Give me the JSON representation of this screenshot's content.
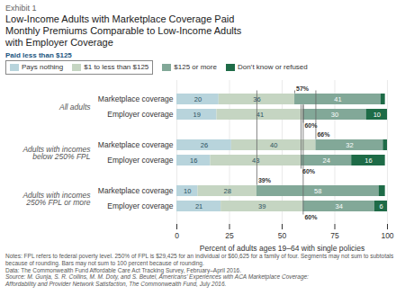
{
  "chart_data": {
    "type": "bar",
    "orientation": "horizontal",
    "stacked": true,
    "exhibit": "Exhibit 1",
    "title": "Low-Income Adults with Marketplace Coverage Paid\nMonthly Premiums Comparable to Low-Income Adults\nwith Employer Coverage",
    "categories": [
      "Marketplace coverage",
      "Employer coverage",
      "Marketplace coverage",
      "Employer coverage",
      "Marketplace coverage",
      "Employer coverage"
    ],
    "category_groups": [
      "All adults",
      "All adults",
      "Adults with incomes\nbelow 250% FPL",
      "Adults with incomes\nbelow 250% FPL",
      "Adults with incomes\n250% FPL or more",
      "Adults with incomes\n250% FPL or more"
    ],
    "series": [
      {
        "name": "Pays nothing",
        "color": "#b8d4dc",
        "values": [
          20,
          19,
          26,
          16,
          10,
          21
        ]
      },
      {
        "name": "$1 to less than $125",
        "color": "#c5d5c2",
        "values": [
          36,
          41,
          40,
          43,
          28,
          39
        ]
      },
      {
        "name": "$125 or more",
        "color": "#82a898",
        "values": [
          41,
          30,
          32,
          24,
          58,
          34
        ]
      },
      {
        "name": "Don’t know or refused",
        "color": "#1e6b47",
        "values": [
          2,
          10,
          2,
          16,
          3,
          6
        ],
        "value_labels": [
          null,
          "10",
          null,
          "16",
          null,
          "6"
        ]
      }
    ],
    "data_labels": true,
    "annotations": [
      {
        "text": "57%",
        "x": 56,
        "category": 0,
        "position": "above"
      },
      {
        "text": "60%",
        "x": 60,
        "category": 1,
        "position": "below"
      },
      {
        "text": "66%",
        "x": 66,
        "category": 2,
        "position": "above"
      },
      {
        "text": "60%",
        "x": 59,
        "category": 3,
        "position": "below"
      },
      {
        "text": "39%",
        "x": 38,
        "category": 4,
        "position": "above"
      },
      {
        "text": "60%",
        "x": 60,
        "category": 5,
        "position": "below"
      }
    ],
    "legend": "top",
    "legend_bracket": {
      "label": "Paid less than $125",
      "series": [
        "Pays nothing",
        "$1 to less than $125"
      ]
    },
    "xlabel": "Percent of adults ages 19–64 with single policies",
    "xlim": [
      0,
      100
    ],
    "xticks": [
      0,
      25,
      50,
      75,
      100
    ],
    "grid": true,
    "notes": [
      "Notes: FPL refers to federal poverty level. 250% of FPL is $29,425 for an individual or $60,625 for a family of four. Segments may not sum to subtotals",
      "because of rounding. Bars may not sum to 100 percent because of rounding.",
      "Data: The Commonwealth Fund Affordable Care Act Tracking Survey, February–April 2016."
    ],
    "source": [
      "Source: M. Gunja, S. R. Collins, M. M. Doty, and S. Beutel, Americans’ Experiences with ACA Marketplace Coverage:",
      "Affordability and Provider Network Satisfaction, The Commonwealth Fund, July 2016."
    ]
  }
}
